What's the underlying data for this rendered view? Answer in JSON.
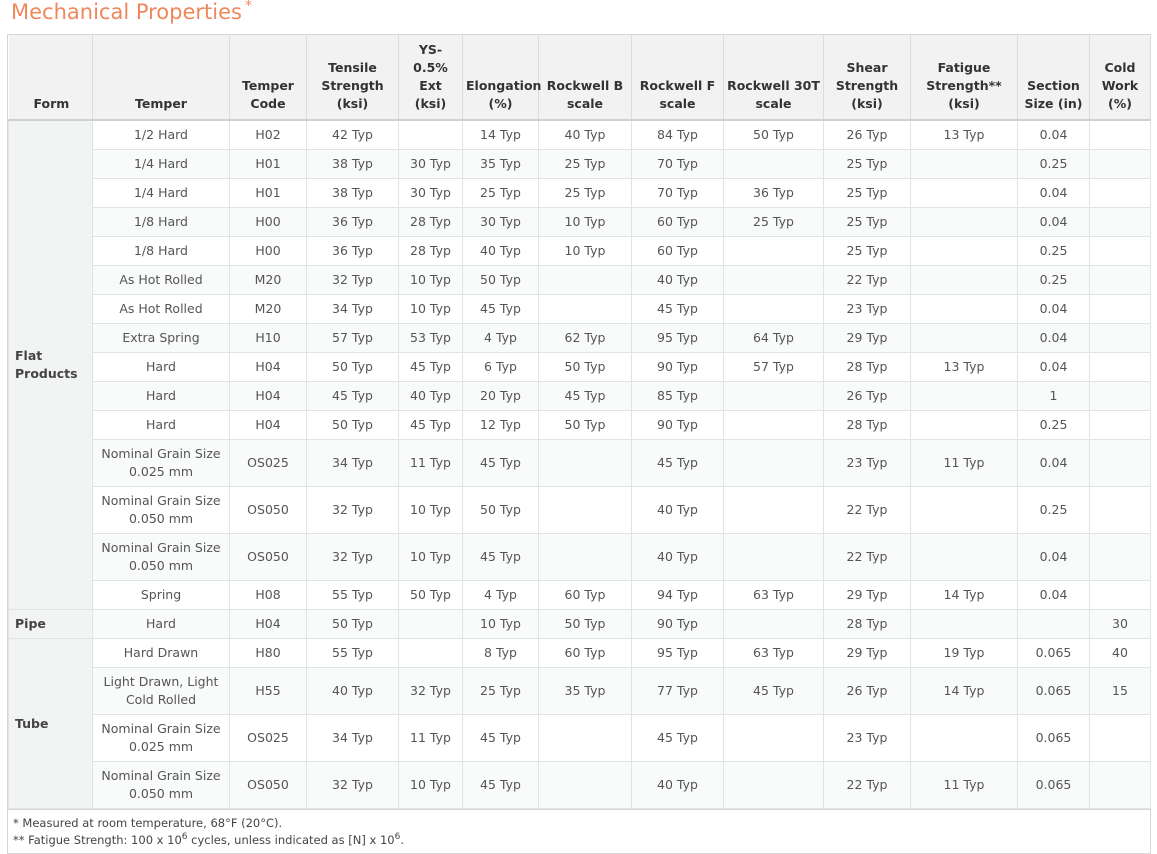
{
  "title": "Mechanical Properties",
  "title_mark": "*",
  "table": {
    "headers": [
      "Form",
      "Temper",
      "Temper Code",
      "Tensile Strength (ksi)",
      "YS-0.5% Ext (ksi)",
      "Elongation (%)",
      "Rockwell B scale",
      "Rockwell F scale",
      "Rockwell 30T scale",
      "Shear Strength (ksi)",
      "Fatigue Strength** (ksi)",
      "Section Size (in)",
      "Cold Work (%)"
    ],
    "groups": [
      {
        "form": "Flat Products",
        "rows": [
          [
            "1/2 Hard",
            "H02",
            "42 Typ",
            null,
            "14 Typ",
            "40 Typ",
            "84 Typ",
            "50 Typ",
            "26 Typ",
            "13 Typ",
            "0.04",
            null
          ],
          [
            "1/4 Hard",
            "H01",
            "38 Typ",
            "30 Typ",
            "35 Typ",
            "25 Typ",
            "70 Typ",
            null,
            "25 Typ",
            null,
            "0.25",
            null
          ],
          [
            "1/4 Hard",
            "H01",
            "38 Typ",
            "30 Typ",
            "25 Typ",
            "25 Typ",
            "70 Typ",
            "36 Typ",
            "25 Typ",
            null,
            "0.04",
            null
          ],
          [
            "1/8 Hard",
            "H00",
            "36 Typ",
            "28 Typ",
            "30 Typ",
            "10 Typ",
            "60 Typ",
            "25 Typ",
            "25 Typ",
            null,
            "0.04",
            null
          ],
          [
            "1/8 Hard",
            "H00",
            "36 Typ",
            "28 Typ",
            "40 Typ",
            "10 Typ",
            "60 Typ",
            null,
            "25 Typ",
            null,
            "0.25",
            null
          ],
          [
            "As Hot Rolled",
            "M20",
            "32 Typ",
            "10 Typ",
            "50 Typ",
            null,
            "40 Typ",
            null,
            "22 Typ",
            null,
            "0.25",
            null
          ],
          [
            "As Hot Rolled",
            "M20",
            "34 Typ",
            "10 Typ",
            "45 Typ",
            null,
            "45 Typ",
            null,
            "23 Typ",
            null,
            "0.04",
            null
          ],
          [
            "Extra Spring",
            "H10",
            "57 Typ",
            "53 Typ",
            "4 Typ",
            "62 Typ",
            "95 Typ",
            "64 Typ",
            "29 Typ",
            null,
            "0.04",
            null
          ],
          [
            "Hard",
            "H04",
            "50 Typ",
            "45 Typ",
            "6 Typ",
            "50 Typ",
            "90 Typ",
            "57 Typ",
            "28 Typ",
            "13 Typ",
            "0.04",
            null
          ],
          [
            "Hard",
            "H04",
            "45 Typ",
            "40 Typ",
            "20 Typ",
            "45 Typ",
            "85 Typ",
            null,
            "26 Typ",
            null,
            "1",
            null
          ],
          [
            "Hard",
            "H04",
            "50 Typ",
            "45 Typ",
            "12 Typ",
            "50 Typ",
            "90 Typ",
            null,
            "28 Typ",
            null,
            "0.25",
            null
          ],
          [
            "Nominal Grain Size 0.025 mm",
            "OS025",
            "34 Typ",
            "11 Typ",
            "45 Typ",
            null,
            "45 Typ",
            null,
            "23 Typ",
            "11 Typ",
            "0.04",
            null
          ],
          [
            "Nominal Grain Size 0.050 mm",
            "OS050",
            "32 Typ",
            "10 Typ",
            "50 Typ",
            null,
            "40 Typ",
            null,
            "22 Typ",
            null,
            "0.25",
            null
          ],
          [
            "Nominal Grain Size 0.050 mm",
            "OS050",
            "32 Typ",
            "10 Typ",
            "45 Typ",
            null,
            "40 Typ",
            null,
            "22 Typ",
            null,
            "0.04",
            null
          ],
          [
            "Spring",
            "H08",
            "55 Typ",
            "50 Typ",
            "4 Typ",
            "60 Typ",
            "94 Typ",
            "63 Typ",
            "29 Typ",
            "14 Typ",
            "0.04",
            null
          ]
        ]
      },
      {
        "form": "Pipe",
        "rows": [
          [
            "Hard",
            "H04",
            "50 Typ",
            null,
            "10 Typ",
            "50 Typ",
            "90 Typ",
            null,
            "28 Typ",
            null,
            null,
            "30"
          ]
        ]
      },
      {
        "form": "Tube",
        "rows": [
          [
            "Hard Drawn",
            "H80",
            "55 Typ",
            null,
            "8 Typ",
            "60 Typ",
            "95 Typ",
            "63 Typ",
            "29 Typ",
            "19 Typ",
            "0.065",
            "40"
          ],
          [
            "Light Drawn, Light Cold Rolled",
            "H55",
            "40 Typ",
            "32 Typ",
            "25 Typ",
            "35 Typ",
            "77 Typ",
            "45 Typ",
            "26 Typ",
            "14 Typ",
            "0.065",
            "15"
          ],
          [
            "Nominal Grain Size 0.025 mm",
            "OS025",
            "34 Typ",
            "11 Typ",
            "45 Typ",
            null,
            "45 Typ",
            null,
            "23 Typ",
            null,
            "0.065",
            null
          ],
          [
            "Nominal Grain Size 0.050 mm",
            "OS050",
            "32 Typ",
            "10 Typ",
            "45 Typ",
            null,
            "40 Typ",
            null,
            "22 Typ",
            "11 Typ",
            "0.065",
            null
          ]
        ]
      }
    ]
  },
  "footnotes": [
    {
      "parts": [
        "* Measured at room temperature, 68°F (20°C)."
      ]
    },
    {
      "parts": [
        "** Fatigue Strength: 100 x 10",
        "6",
        " cycles, unless indicated as [N] x 10",
        "6",
        "."
      ]
    }
  ]
}
